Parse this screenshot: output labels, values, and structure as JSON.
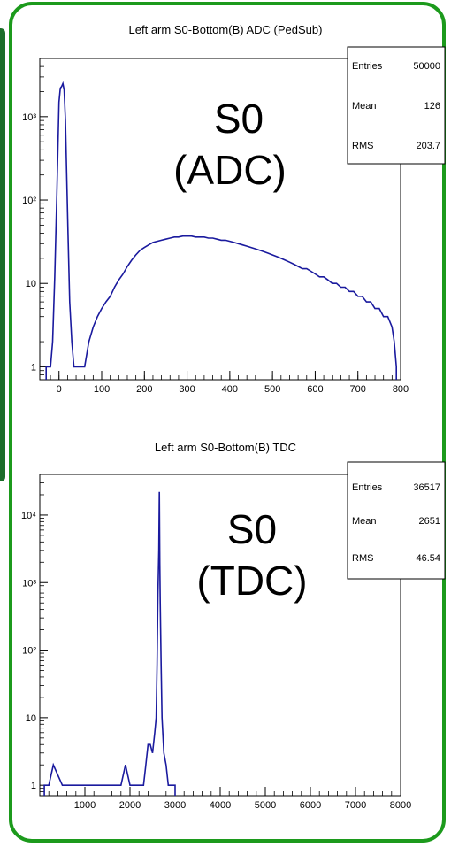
{
  "charts": [
    {
      "title": "Left arm S0-Bottom(B) ADC (PedSub)",
      "overlay": [
        "S0",
        "(ADC)"
      ],
      "stats": [
        {
          "label": "Entries",
          "value": "50000"
        },
        {
          "label": "Mean",
          "value": "126"
        },
        {
          "label": "RMS",
          "value": "203.7"
        }
      ],
      "x_ticks": [
        "0",
        "100",
        "200",
        "300",
        "400",
        "500",
        "600",
        "700",
        "800"
      ],
      "y_ticks": [
        "1",
        "10",
        "10²",
        "10³"
      ]
    },
    {
      "title": "Left arm S0-Bottom(B) TDC",
      "overlay": [
        "S0",
        "(TDC)"
      ],
      "stats": [
        {
          "label": "Entries",
          "value": "36517"
        },
        {
          "label": "Mean",
          "value": "2651"
        },
        {
          "label": "RMS",
          "value": "46.54"
        }
      ],
      "x_ticks": [
        "1000",
        "2000",
        "3000",
        "4000",
        "5000",
        "6000",
        "7000",
        "8000"
      ],
      "y_ticks": [
        "1",
        "10",
        "10²",
        "10³",
        "10⁴"
      ]
    }
  ],
  "chart_data": [
    {
      "type": "histogram",
      "title": "Left arm S0-Bottom(B) ADC (PedSub)",
      "log_y": true,
      "xlim": [
        -45,
        800
      ],
      "ylim": [
        0.7,
        5000
      ],
      "line_color": "#1a1a9e",
      "points": [
        [
          -30,
          1
        ],
        [
          -20,
          1
        ],
        [
          -15,
          2
        ],
        [
          -10,
          12
        ],
        [
          -5,
          120
        ],
        [
          0,
          1500
        ],
        [
          3,
          2200
        ],
        [
          6,
          2300
        ],
        [
          9,
          2500
        ],
        [
          12,
          2100
        ],
        [
          15,
          900
        ],
        [
          18,
          200
        ],
        [
          21,
          40
        ],
        [
          25,
          6
        ],
        [
          30,
          2
        ],
        [
          35,
          1
        ],
        [
          45,
          1
        ],
        [
          60,
          1
        ],
        [
          70,
          2
        ],
        [
          80,
          3
        ],
        [
          90,
          4
        ],
        [
          100,
          5
        ],
        [
          110,
          6
        ],
        [
          120,
          7
        ],
        [
          130,
          9
        ],
        [
          140,
          11
        ],
        [
          150,
          13
        ],
        [
          160,
          16
        ],
        [
          170,
          19
        ],
        [
          180,
          22
        ],
        [
          190,
          25
        ],
        [
          200,
          27
        ],
        [
          210,
          29
        ],
        [
          220,
          31
        ],
        [
          230,
          32
        ],
        [
          240,
          33
        ],
        [
          250,
          34
        ],
        [
          260,
          35
        ],
        [
          270,
          36
        ],
        [
          280,
          36
        ],
        [
          290,
          37
        ],
        [
          300,
          37
        ],
        [
          310,
          37
        ],
        [
          320,
          36
        ],
        [
          330,
          36
        ],
        [
          340,
          36
        ],
        [
          350,
          35
        ],
        [
          360,
          35
        ],
        [
          370,
          34
        ],
        [
          380,
          33
        ],
        [
          390,
          33
        ],
        [
          400,
          32
        ],
        [
          410,
          31
        ],
        [
          420,
          30
        ],
        [
          430,
          29
        ],
        [
          440,
          28
        ],
        [
          450,
          27
        ],
        [
          460,
          26
        ],
        [
          470,
          25
        ],
        [
          480,
          24
        ],
        [
          490,
          23
        ],
        [
          500,
          22
        ],
        [
          510,
          21
        ],
        [
          520,
          20
        ],
        [
          530,
          19
        ],
        [
          540,
          18
        ],
        [
          550,
          17
        ],
        [
          560,
          16
        ],
        [
          570,
          15
        ],
        [
          580,
          15
        ],
        [
          590,
          14
        ],
        [
          600,
          13
        ],
        [
          610,
          12
        ],
        [
          620,
          12
        ],
        [
          630,
          11
        ],
        [
          640,
          10
        ],
        [
          650,
          10
        ],
        [
          660,
          9
        ],
        [
          670,
          9
        ],
        [
          680,
          8
        ],
        [
          690,
          8
        ],
        [
          700,
          7
        ],
        [
          710,
          7
        ],
        [
          720,
          6
        ],
        [
          730,
          6
        ],
        [
          740,
          5
        ],
        [
          750,
          5
        ],
        [
          760,
          4
        ],
        [
          770,
          4
        ],
        [
          780,
          3
        ],
        [
          785,
          2
        ],
        [
          790,
          1
        ]
      ]
    },
    {
      "type": "histogram",
      "title": "Left arm S0-Bottom(B) TDC",
      "log_y": true,
      "xlim": [
        0,
        8000
      ],
      "ylim": [
        0.7,
        40000
      ],
      "line_color": "#1a1a9e",
      "points": [
        [
          100,
          1
        ],
        [
          200,
          1
        ],
        [
          300,
          2
        ],
        [
          500,
          1
        ],
        [
          600,
          1
        ],
        [
          700,
          1
        ],
        [
          900,
          1
        ],
        [
          1000,
          1
        ],
        [
          1200,
          1
        ],
        [
          1300,
          1
        ],
        [
          1500,
          1
        ],
        [
          1600,
          1
        ],
        [
          1700,
          1
        ],
        [
          1800,
          1
        ],
        [
          1900,
          2
        ],
        [
          2000,
          1
        ],
        [
          2100,
          1
        ],
        [
          2200,
          1
        ],
        [
          2300,
          1
        ],
        [
          2350,
          2
        ],
        [
          2400,
          4
        ],
        [
          2450,
          4
        ],
        [
          2500,
          3
        ],
        [
          2550,
          6
        ],
        [
          2580,
          10
        ],
        [
          2600,
          60
        ],
        [
          2620,
          700
        ],
        [
          2640,
          3000
        ],
        [
          2650,
          22000
        ],
        [
          2660,
          2000
        ],
        [
          2670,
          500
        ],
        [
          2690,
          60
        ],
        [
          2710,
          10
        ],
        [
          2750,
          3
        ],
        [
          2800,
          2
        ],
        [
          2850,
          1
        ],
        [
          2900,
          1
        ],
        [
          2950,
          1
        ],
        [
          3000,
          1
        ]
      ]
    }
  ]
}
